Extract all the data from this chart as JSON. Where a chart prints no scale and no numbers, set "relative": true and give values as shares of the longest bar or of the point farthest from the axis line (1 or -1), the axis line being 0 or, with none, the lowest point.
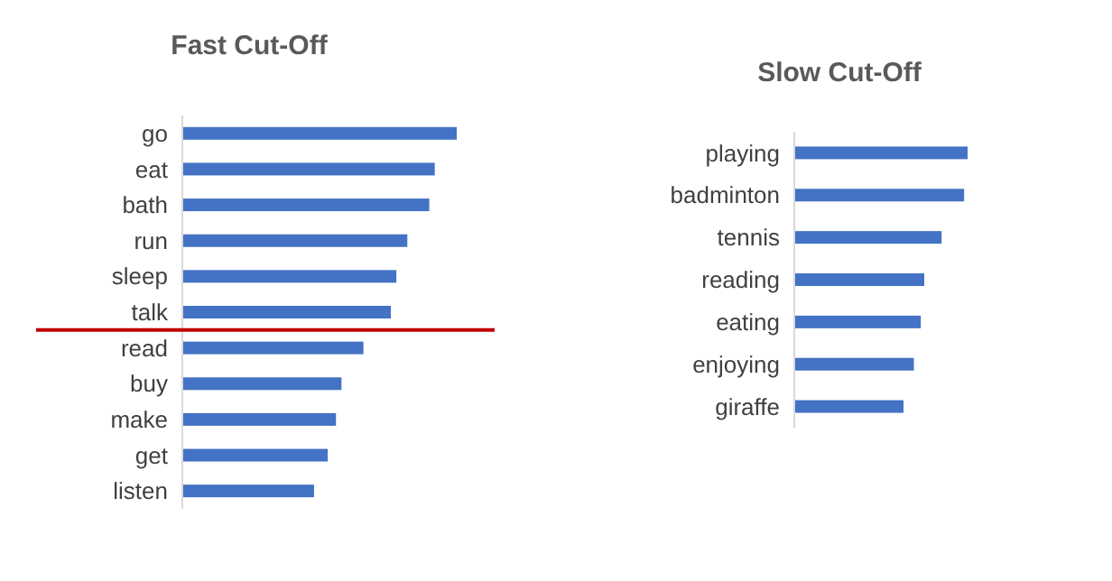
{
  "chart_data": [
    {
      "type": "bar",
      "orientation": "horizontal",
      "relative": true,
      "title": "Fast Cut-Off",
      "categories": [
        "go",
        "eat",
        "bath",
        "run",
        "sleep",
        "talk",
        "read",
        "buy",
        "make",
        "get",
        "listen"
      ],
      "series": [
        {
          "color": "#4472c4",
          "values": [
            1,
            0.92,
            0.9,
            0.82,
            0.78,
            0.76,
            0.66,
            0.58,
            0.56,
            0.53,
            0.48
          ]
        }
      ],
      "ref_lines": [
        {
          "axis": "y",
          "value": "read",
          "color": "#c00000"
        }
      ]
    },
    {
      "type": "bar",
      "orientation": "horizontal",
      "relative": true,
      "title": "Slow Cut-Off",
      "categories": [
        "playing",
        "badminton",
        "tennis",
        "reading",
        "eating",
        "enjoying",
        "giraffe"
      ],
      "series": [
        {
          "color": "#4472c4",
          "values": [
            1,
            0.98,
            0.85,
            0.75,
            0.73,
            0.69,
            0.63
          ]
        }
      ]
    }
  ]
}
